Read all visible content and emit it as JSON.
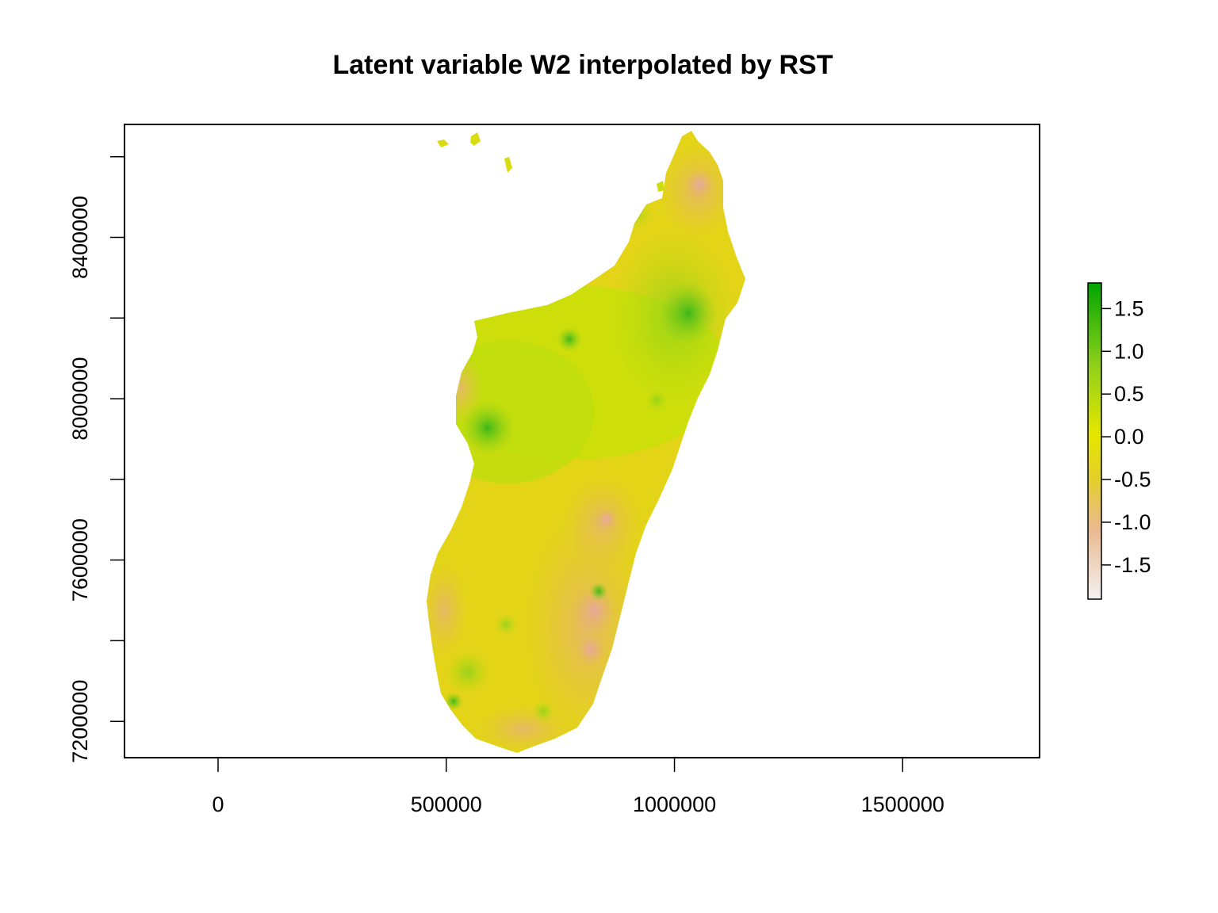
{
  "chart_data": {
    "type": "heatmap",
    "title": "Latent variable W2 interpolated by RST",
    "xlabel": "",
    "ylabel": "",
    "x_ticks": [
      "0",
      "500000",
      "1000000",
      "1500000"
    ],
    "x_tick_values": [
      0,
      500000,
      1000000,
      1500000
    ],
    "y_ticks": [
      "7200000",
      "7600000",
      "8000000",
      "8400000"
    ],
    "y_tick_values": [
      7200000,
      7600000,
      8000000,
      8400000
    ],
    "xlim": [
      -205000,
      1800000
    ],
    "ylim": [
      7110000,
      8680000
    ],
    "legend": {
      "position": "right",
      "range": [
        -1.9,
        1.8
      ],
      "ticks": [
        "1.5",
        "1.0",
        "0.5",
        "0.0",
        "-0.5",
        "-1.0",
        "-1.5"
      ],
      "tick_values": [
        1.5,
        1.0,
        0.5,
        0.0,
        -0.5,
        -1.0,
        -1.5
      ],
      "colors": [
        "#f2f2f2",
        "#ebb98f",
        "#e3cf2a",
        "#e6e600",
        "#8fd01a",
        "#00a600"
      ]
    }
  }
}
